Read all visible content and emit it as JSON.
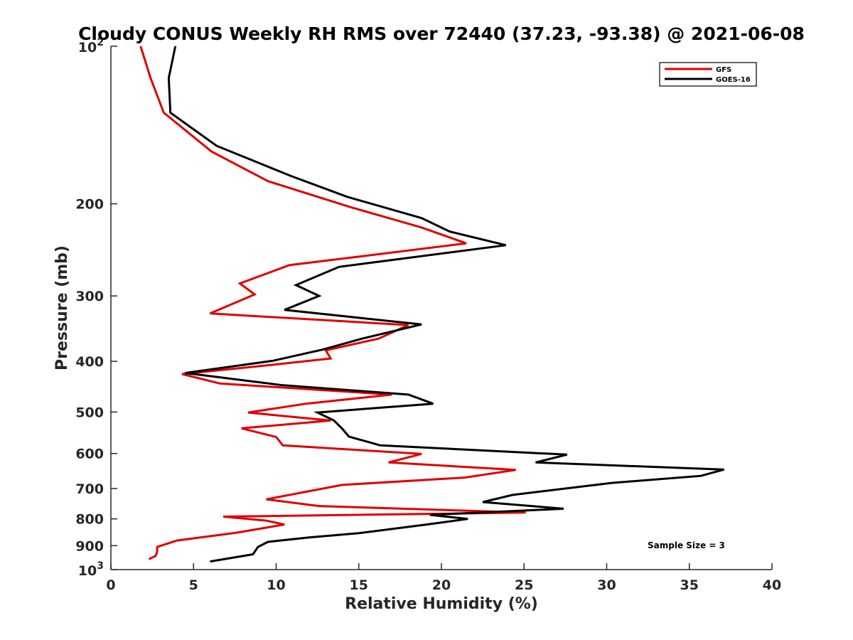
{
  "chart_data": {
    "type": "line",
    "title": "Cloudy CONUS Weekly RH RMS over 72440 (37.23, -93.38) @ 2021-06-08",
    "xlabel": "Relative Humidity (%)",
    "ylabel": "Pressure (mb)",
    "xlim": [
      0,
      40
    ],
    "ylim": [
      100,
      1000
    ],
    "yscale": "log",
    "y_reversed": true,
    "grid": false,
    "legend_position": "top-right",
    "x_ticks": [
      "0",
      "5",
      "10",
      "15",
      "20",
      "25",
      "30",
      "35",
      "40"
    ],
    "y_ticks": [
      {
        "value": 100,
        "base": "10",
        "exp": "2"
      },
      {
        "value": 200,
        "label": "200"
      },
      {
        "value": 300,
        "label": "300"
      },
      {
        "value": 400,
        "label": "400"
      },
      {
        "value": 500,
        "label": "500"
      },
      {
        "value": 600,
        "label": "600"
      },
      {
        "value": 700,
        "label": "700"
      },
      {
        "value": 800,
        "label": "800"
      },
      {
        "value": 900,
        "label": "900"
      },
      {
        "value": 1000,
        "base": "10",
        "exp": "3"
      }
    ],
    "annotation": "Sample Size = 3",
    "series": [
      {
        "name": "GFS",
        "color": "#e00000",
        "points": [
          [
            1.8,
            100
          ],
          [
            2.4,
            115
          ],
          [
            3.2,
            134
          ],
          [
            6.1,
            159
          ],
          [
            9.5,
            181
          ],
          [
            14.5,
            203
          ],
          [
            18.8,
            222
          ],
          [
            21.5,
            238
          ],
          [
            10.8,
            262
          ],
          [
            7.8,
            284
          ],
          [
            8.7,
            298
          ],
          [
            6.0,
            324
          ],
          [
            18.0,
            341
          ],
          [
            16.2,
            362
          ],
          [
            13.0,
            381
          ],
          [
            13.3,
            395
          ],
          [
            9.2,
            408
          ],
          [
            4.3,
            423
          ],
          [
            6.6,
            441
          ],
          [
            17.0,
            463
          ],
          [
            11.8,
            482
          ],
          [
            8.3,
            501
          ],
          [
            13.3,
            519
          ],
          [
            7.9,
            537
          ],
          [
            10.0,
            558
          ],
          [
            10.4,
            579
          ],
          [
            18.8,
            601
          ],
          [
            16.8,
            624
          ],
          [
            24.5,
            645
          ],
          [
            21.4,
            667
          ],
          [
            14.0,
            689
          ],
          [
            11.7,
            711
          ],
          [
            9.4,
            734
          ],
          [
            12.6,
            756
          ],
          [
            25.1,
            778
          ],
          [
            6.8,
            792
          ],
          [
            9.4,
            806
          ],
          [
            10.5,
            820
          ],
          [
            7.6,
            850
          ],
          [
            4.0,
            880
          ],
          [
            2.8,
            905
          ],
          [
            2.8,
            925
          ],
          [
            2.7,
            942
          ],
          [
            2.3,
            955
          ]
        ]
      },
      {
        "name": "GOES-16",
        "color": "#000000",
        "points": [
          [
            3.9,
            100
          ],
          [
            3.5,
            115
          ],
          [
            3.6,
            134
          ],
          [
            6.4,
            155
          ],
          [
            10.9,
            177
          ],
          [
            14.3,
            194
          ],
          [
            18.8,
            213
          ],
          [
            20.5,
            226
          ],
          [
            23.9,
            240
          ],
          [
            13.8,
            264
          ],
          [
            11.2,
            286
          ],
          [
            12.6,
            300
          ],
          [
            10.5,
            319
          ],
          [
            18.8,
            340
          ],
          [
            15.2,
            362
          ],
          [
            12.8,
            380
          ],
          [
            9.8,
            399
          ],
          [
            4.5,
            421
          ],
          [
            10.3,
            444
          ],
          [
            18.0,
            463
          ],
          [
            19.5,
            482
          ],
          [
            12.5,
            501
          ],
          [
            13.5,
            519
          ],
          [
            14.0,
            538
          ],
          [
            14.4,
            557
          ],
          [
            16.3,
            579
          ],
          [
            27.6,
            603
          ],
          [
            25.7,
            624
          ],
          [
            37.1,
            644
          ],
          [
            35.7,
            662
          ],
          [
            30.3,
            683
          ],
          [
            24.3,
            720
          ],
          [
            22.5,
            743
          ],
          [
            27.4,
            765
          ],
          [
            19.3,
            786
          ],
          [
            21.6,
            800
          ],
          [
            19.1,
            820
          ],
          [
            15.0,
            852
          ],
          [
            12.0,
            868
          ],
          [
            9.5,
            885
          ],
          [
            8.9,
            905
          ],
          [
            8.6,
            935
          ],
          [
            6.0,
            965
          ]
        ]
      }
    ]
  }
}
